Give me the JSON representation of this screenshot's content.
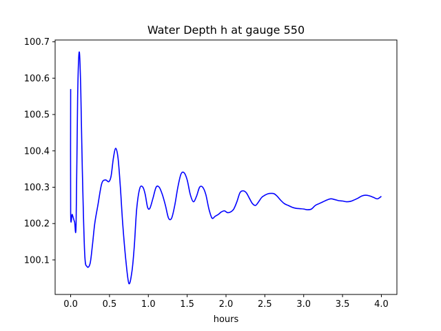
{
  "chart_data": {
    "type": "line",
    "title": "Water Depth h at gauge 550",
    "xlabel": "hours",
    "ylabel": "",
    "xlim": [
      -0.2,
      4.2
    ],
    "ylim": [
      100.005,
      100.705
    ],
    "xticks": [
      0.0,
      0.5,
      1.0,
      1.5,
      2.0,
      2.5,
      3.0,
      3.5,
      4.0
    ],
    "xtick_labels": [
      "0.0",
      "0.5",
      "1.0",
      "1.5",
      "2.0",
      "2.5",
      "3.0",
      "3.5",
      "4.0"
    ],
    "yticks": [
      100.1,
      100.2,
      100.3,
      100.4,
      100.5,
      100.6,
      100.7
    ],
    "ytick_labels": [
      "100.1",
      "100.2",
      "100.3",
      "100.4",
      "100.5",
      "100.6",
      "100.7"
    ],
    "grid": false,
    "legend": "none",
    "series": [
      {
        "color": "#0000ff",
        "x": [
          0.0,
          0.0,
          0.02,
          0.05,
          0.07,
          0.09,
          0.11,
          0.13,
          0.15,
          0.18,
          0.21,
          0.25,
          0.28,
          0.31,
          0.35,
          0.4,
          0.45,
          0.49,
          0.52,
          0.55,
          0.58,
          0.61,
          0.64,
          0.67,
          0.71,
          0.75,
          0.79,
          0.82,
          0.85,
          0.89,
          0.93,
          0.96,
          0.99,
          1.02,
          1.06,
          1.1,
          1.14,
          1.18,
          1.22,
          1.26,
          1.3,
          1.34,
          1.38,
          1.42,
          1.46,
          1.5,
          1.54,
          1.58,
          1.62,
          1.66,
          1.7,
          1.74,
          1.78,
          1.82,
          1.86,
          1.9,
          1.94,
          1.98,
          2.02,
          2.06,
          2.1,
          2.14,
          2.18,
          2.22,
          2.26,
          2.3,
          2.34,
          2.38,
          2.42,
          2.46,
          2.5,
          2.54,
          2.58,
          2.62,
          2.66,
          2.7,
          2.75,
          2.8,
          2.85,
          2.9,
          2.95,
          3.0,
          3.05,
          3.1,
          3.15,
          3.2,
          3.25,
          3.3,
          3.35,
          3.4,
          3.45,
          3.5,
          3.55,
          3.6,
          3.65,
          3.7,
          3.75,
          3.8,
          3.85,
          3.9,
          3.95,
          4.0
        ],
        "y": [
          100.57,
          100.23,
          100.225,
          100.205,
          100.2,
          100.55,
          100.672,
          100.57,
          100.35,
          100.12,
          100.082,
          100.09,
          100.14,
          100.2,
          100.25,
          100.31,
          100.32,
          100.315,
          100.33,
          100.38,
          100.407,
          100.38,
          100.3,
          100.2,
          100.1,
          100.035,
          100.07,
          100.14,
          100.24,
          100.297,
          100.3,
          100.28,
          100.245,
          100.242,
          100.27,
          100.3,
          100.3,
          100.28,
          100.25,
          100.215,
          100.215,
          100.25,
          100.3,
          100.336,
          100.34,
          100.32,
          100.28,
          100.26,
          100.275,
          100.3,
          100.3,
          100.28,
          100.24,
          100.215,
          100.22,
          100.225,
          100.232,
          100.235,
          100.23,
          100.232,
          100.24,
          100.26,
          100.285,
          100.29,
          100.285,
          100.27,
          100.255,
          100.25,
          100.26,
          100.272,
          100.278,
          100.282,
          100.283,
          100.282,
          100.275,
          100.265,
          100.255,
          100.25,
          100.245,
          100.242,
          100.241,
          100.24,
          100.238,
          100.24,
          100.25,
          100.255,
          100.26,
          100.265,
          100.268,
          100.266,
          100.263,
          100.262,
          100.26,
          100.261,
          100.265,
          100.27,
          100.276,
          100.278,
          100.276,
          100.272,
          100.268,
          100.275
        ]
      }
    ]
  }
}
